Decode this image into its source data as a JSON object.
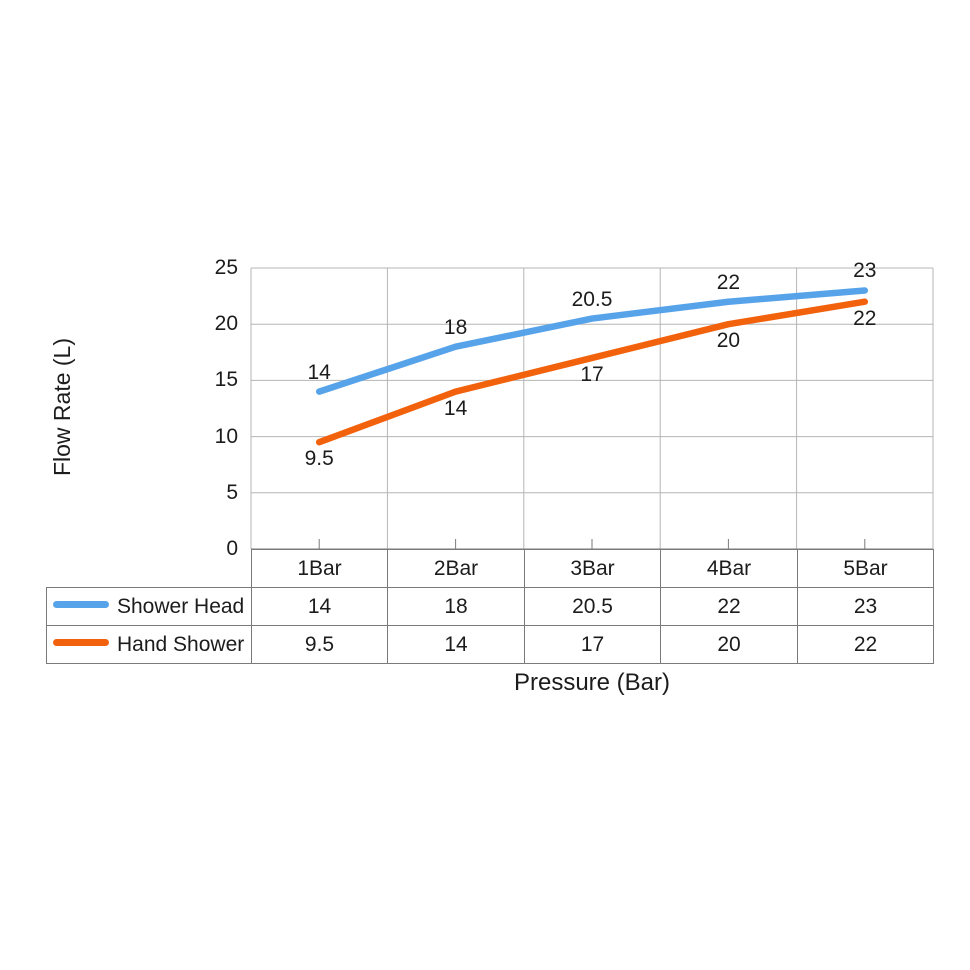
{
  "chart_data": {
    "type": "line",
    "title": "",
    "xlabel": "Pressure (Bar)",
    "ylabel": "Flow Rate (L)",
    "categories": [
      "1Bar",
      "2Bar",
      "3Bar",
      "4Bar",
      "5Bar"
    ],
    "series": [
      {
        "name": "Shower Head",
        "values": [
          14,
          18,
          20.5,
          22,
          23
        ],
        "color": "#57A3EA",
        "label_position": "above"
      },
      {
        "name": "Hand Shower",
        "values": [
          9.5,
          14,
          17,
          20,
          22
        ],
        "color": "#F2620D",
        "label_position": "below"
      }
    ],
    "ylim": [
      0,
      25
    ],
    "yticks": [
      0,
      5,
      10,
      15,
      20,
      25
    ],
    "grid": true,
    "legend_position": "data-table-left",
    "colors": {
      "gridline": "#B5B5B5",
      "axis": "#7A7A7A",
      "text": "#1C1C1C",
      "background": "#FFFFFF"
    }
  }
}
